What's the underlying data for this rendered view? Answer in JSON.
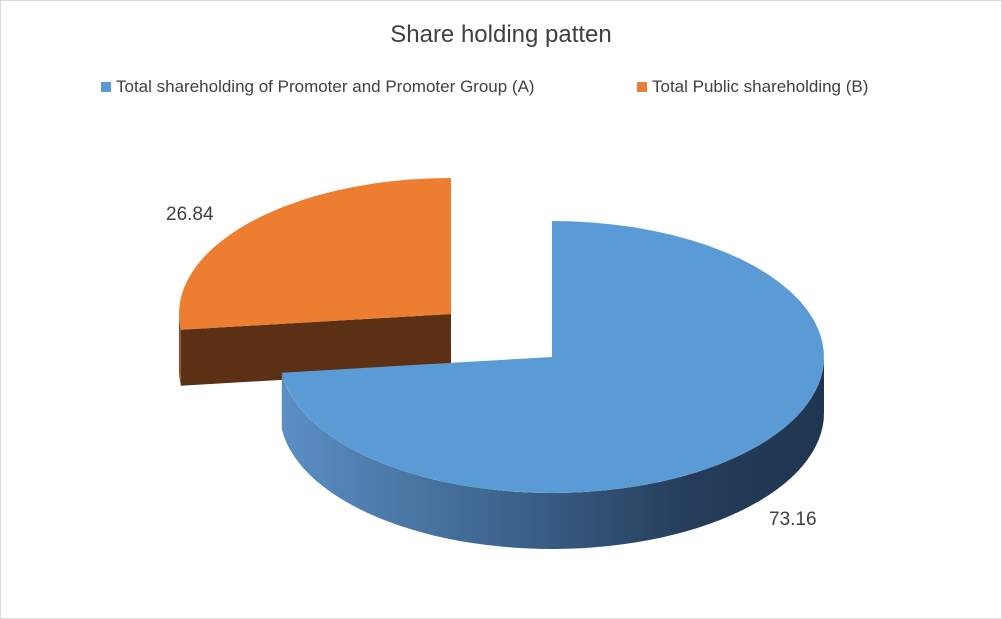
{
  "chart_data": {
    "type": "pie",
    "style": "3d-exploded",
    "title": "Share holding patten",
    "legend_position": "top",
    "series": [
      {
        "name": "Total shareholding of Promoter and Promoter Group (A)",
        "value": 73.16,
        "label": "73.16",
        "color": "#5b9bd5"
      },
      {
        "name": "Total Public shareholding (B)",
        "value": 26.84,
        "label": "26.84",
        "color": "#ed7d31"
      }
    ]
  }
}
